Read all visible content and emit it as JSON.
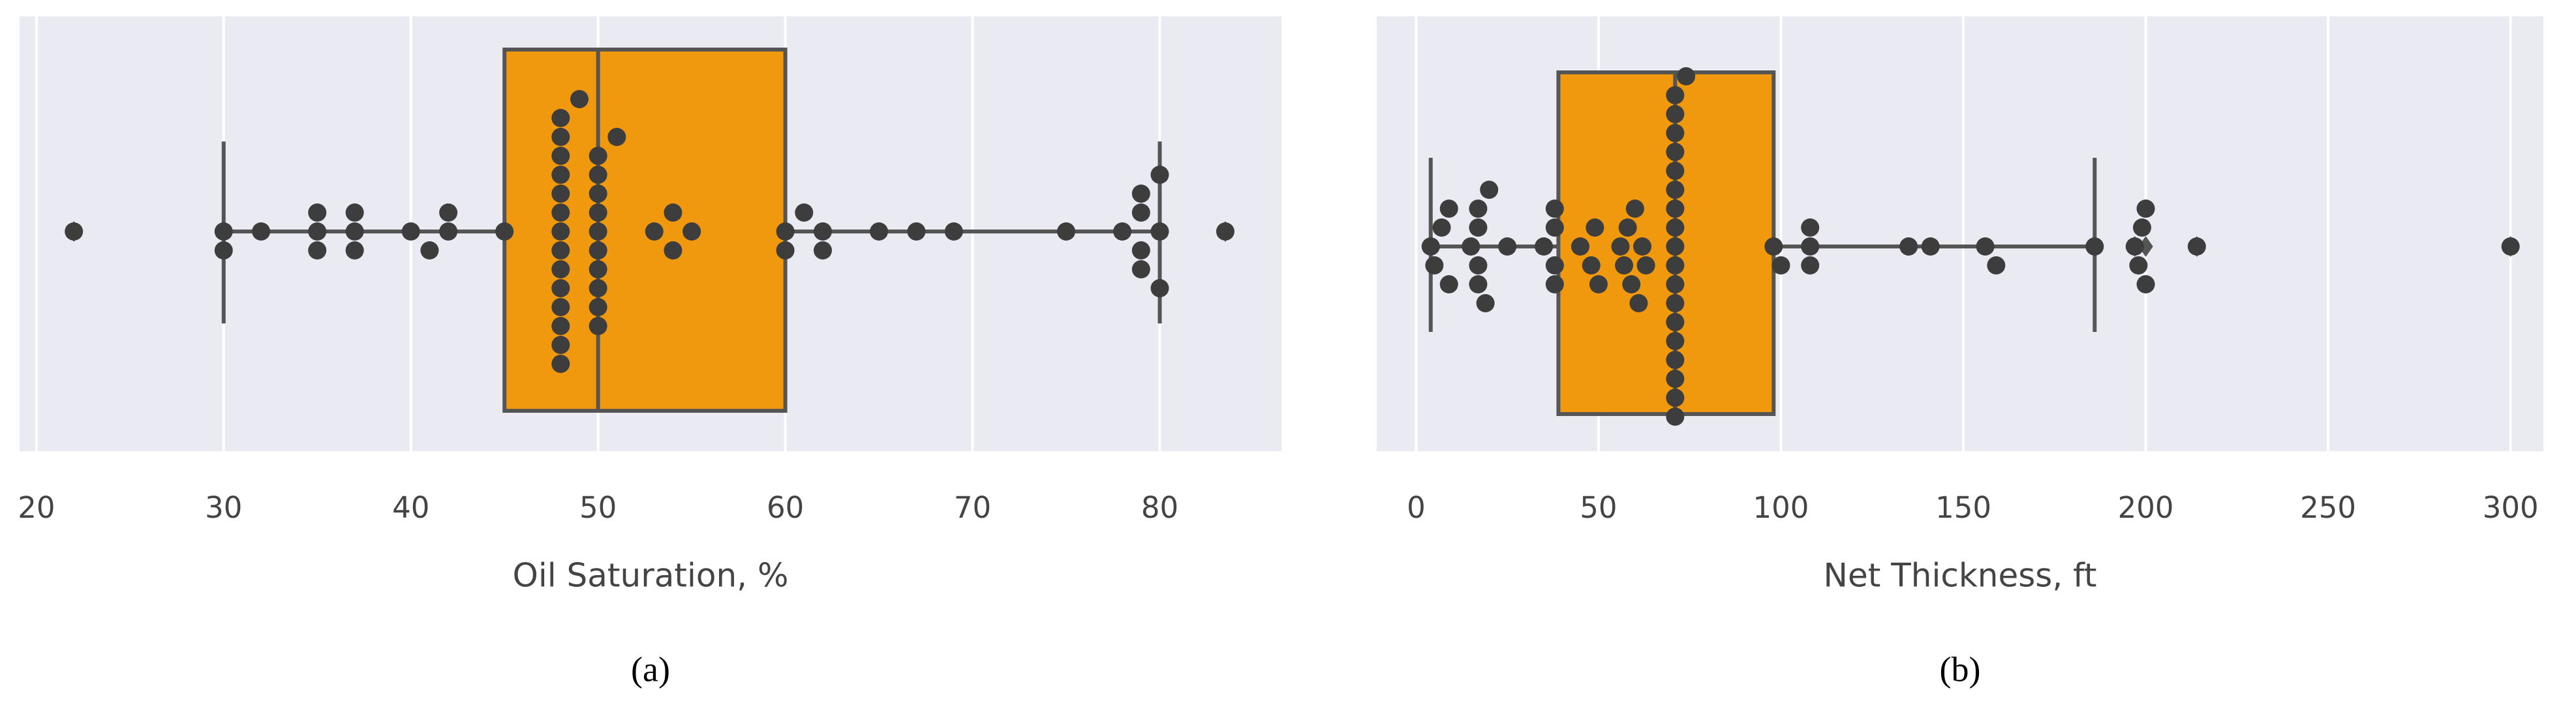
{
  "chart_data": [
    {
      "type": "box",
      "xlabel": "Oil Saturation, %",
      "caption": "(a)",
      "xlim": [
        19.1,
        86.5
      ],
      "xticks": [
        20,
        30,
        40,
        50,
        60,
        70,
        80
      ],
      "grid": true,
      "box": {
        "whislo": 30,
        "q1": 45,
        "med": 50,
        "q3": 60,
        "whishi": 80,
        "fliers": [
          22,
          83.5
        ],
        "color": "#f0990f"
      },
      "points": [
        22,
        30,
        30,
        32,
        35,
        35,
        35,
        37,
        37,
        37,
        40,
        41,
        42,
        42,
        45,
        48,
        48,
        48,
        48,
        48,
        48,
        48,
        48,
        48,
        48,
        48,
        48,
        48,
        48,
        49,
        50,
        50,
        50,
        50,
        50,
        50,
        50,
        50,
        50,
        50,
        51,
        53,
        54,
        54,
        55,
        60,
        60,
        61,
        62,
        62,
        65,
        67,
        69,
        75,
        78,
        79,
        79,
        79,
        79,
        80,
        80,
        80,
        83.5
      ],
      "point_color": "#3d3d3d"
    },
    {
      "type": "box",
      "xlabel": "Net Thickness, ft",
      "caption": "(b)",
      "xlim": [
        -10.8,
        309
      ],
      "xticks": [
        0,
        50,
        100,
        150,
        200,
        250,
        300
      ],
      "grid": true,
      "box": {
        "whislo": 4,
        "q1": 39,
        "med": 71,
        "q3": 98,
        "whishi": 186,
        "fliers": [
          197,
          200,
          214,
          300
        ],
        "color": "#f0990f"
      },
      "points": [
        4,
        5,
        7,
        9,
        9,
        15,
        17,
        17,
        17,
        17,
        19,
        20,
        25,
        35,
        38,
        38,
        38,
        38,
        45,
        48,
        49,
        50,
        56,
        57,
        58,
        59,
        60,
        61,
        62,
        63,
        71,
        71,
        71,
        71,
        71,
        71,
        71,
        71,
        71,
        71,
        71,
        71,
        71,
        71,
        71,
        71,
        71,
        71,
        74,
        98,
        100,
        108,
        108,
        108,
        135,
        141,
        156,
        159,
        186,
        197,
        198,
        199,
        200,
        200,
        214,
        300
      ],
      "point_color": "#3d3d3d"
    }
  ]
}
